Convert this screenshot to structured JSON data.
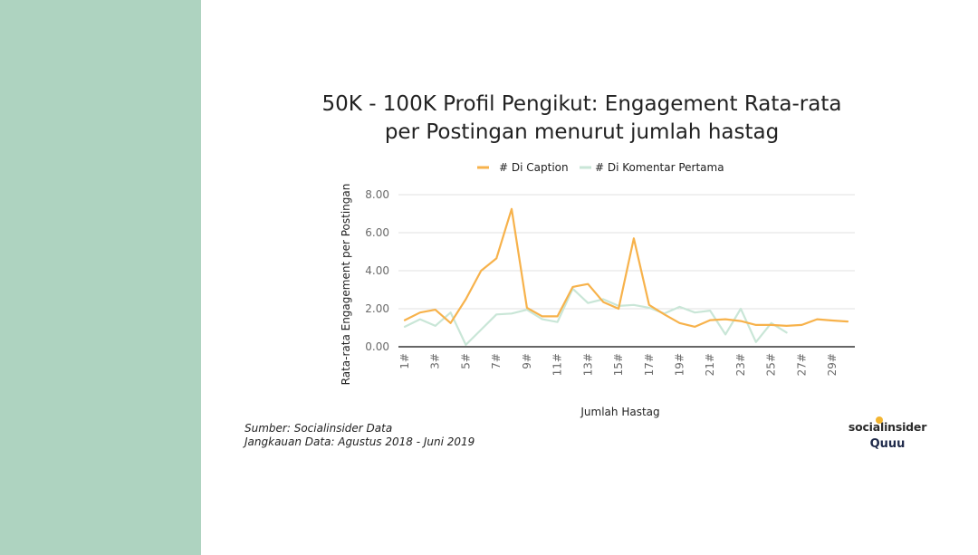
{
  "colors": {
    "side_panel": "#aed3c0",
    "caption_series": "#f7b24b",
    "comment_series": "#c9e6d7",
    "grid": "#e0e0e0",
    "axis": "#333333"
  },
  "title": {
    "line1": "50K - 100K Profil Pengikut: Engagement Rata-rata",
    "line2": "per Postingan menurut jumlah hastag"
  },
  "source": {
    "line1": "Sumber: Socialinsider Data",
    "line2": "Jangkauan Data: Agustus 2018 - Juni 2019"
  },
  "brand": {
    "logo1": "socialinsider",
    "logo2": "Quuu"
  },
  "chart_data": {
    "type": "line",
    "title": "50K - 100K Profil Pengikut: Engagement Rata-rata per Postingan menurut jumlah hastag",
    "xlabel": "Jumlah Hastag",
    "ylabel": "Rata-rata Engagement per Postingan",
    "ylim": [
      0,
      8
    ],
    "yticks": [
      "0.00",
      "2.00",
      "4.00",
      "6.00",
      "8.00"
    ],
    "grid": true,
    "legend_position": "top",
    "x": [
      1,
      2,
      3,
      4,
      5,
      6,
      7,
      8,
      9,
      10,
      11,
      12,
      13,
      14,
      15,
      16,
      17,
      18,
      19,
      20,
      21,
      22,
      23,
      24,
      25,
      26,
      27,
      28,
      29,
      30
    ],
    "xtick_labels": [
      "1#",
      "3#",
      "5#",
      "7#",
      "9#",
      "11#",
      "13#",
      "15#",
      "17#",
      "19#",
      "21#",
      "23#",
      "25#",
      "27#",
      "29#"
    ],
    "series": [
      {
        "name": "# Di Caption",
        "values": [
          1.4,
          1.8,
          1.95,
          1.25,
          2.5,
          4.0,
          4.65,
          7.25,
          2.05,
          1.6,
          1.6,
          3.15,
          3.3,
          2.35,
          2.0,
          5.7,
          2.2,
          1.7,
          1.25,
          1.05,
          1.4,
          1.45,
          1.35,
          1.15,
          1.15,
          1.1,
          1.15,
          1.45,
          1.38,
          1.33
        ]
      },
      {
        "name": "# Di Komentar Pertama",
        "values": [
          1.05,
          1.45,
          1.1,
          1.8,
          0.1,
          0.9,
          1.7,
          1.75,
          1.95,
          1.45,
          1.3,
          3.05,
          2.3,
          2.5,
          2.15,
          2.2,
          2.05,
          1.75,
          2.1,
          1.8,
          1.9,
          0.65,
          2.0,
          0.25,
          1.25,
          0.75,
          null,
          null,
          null,
          null
        ]
      }
    ]
  }
}
